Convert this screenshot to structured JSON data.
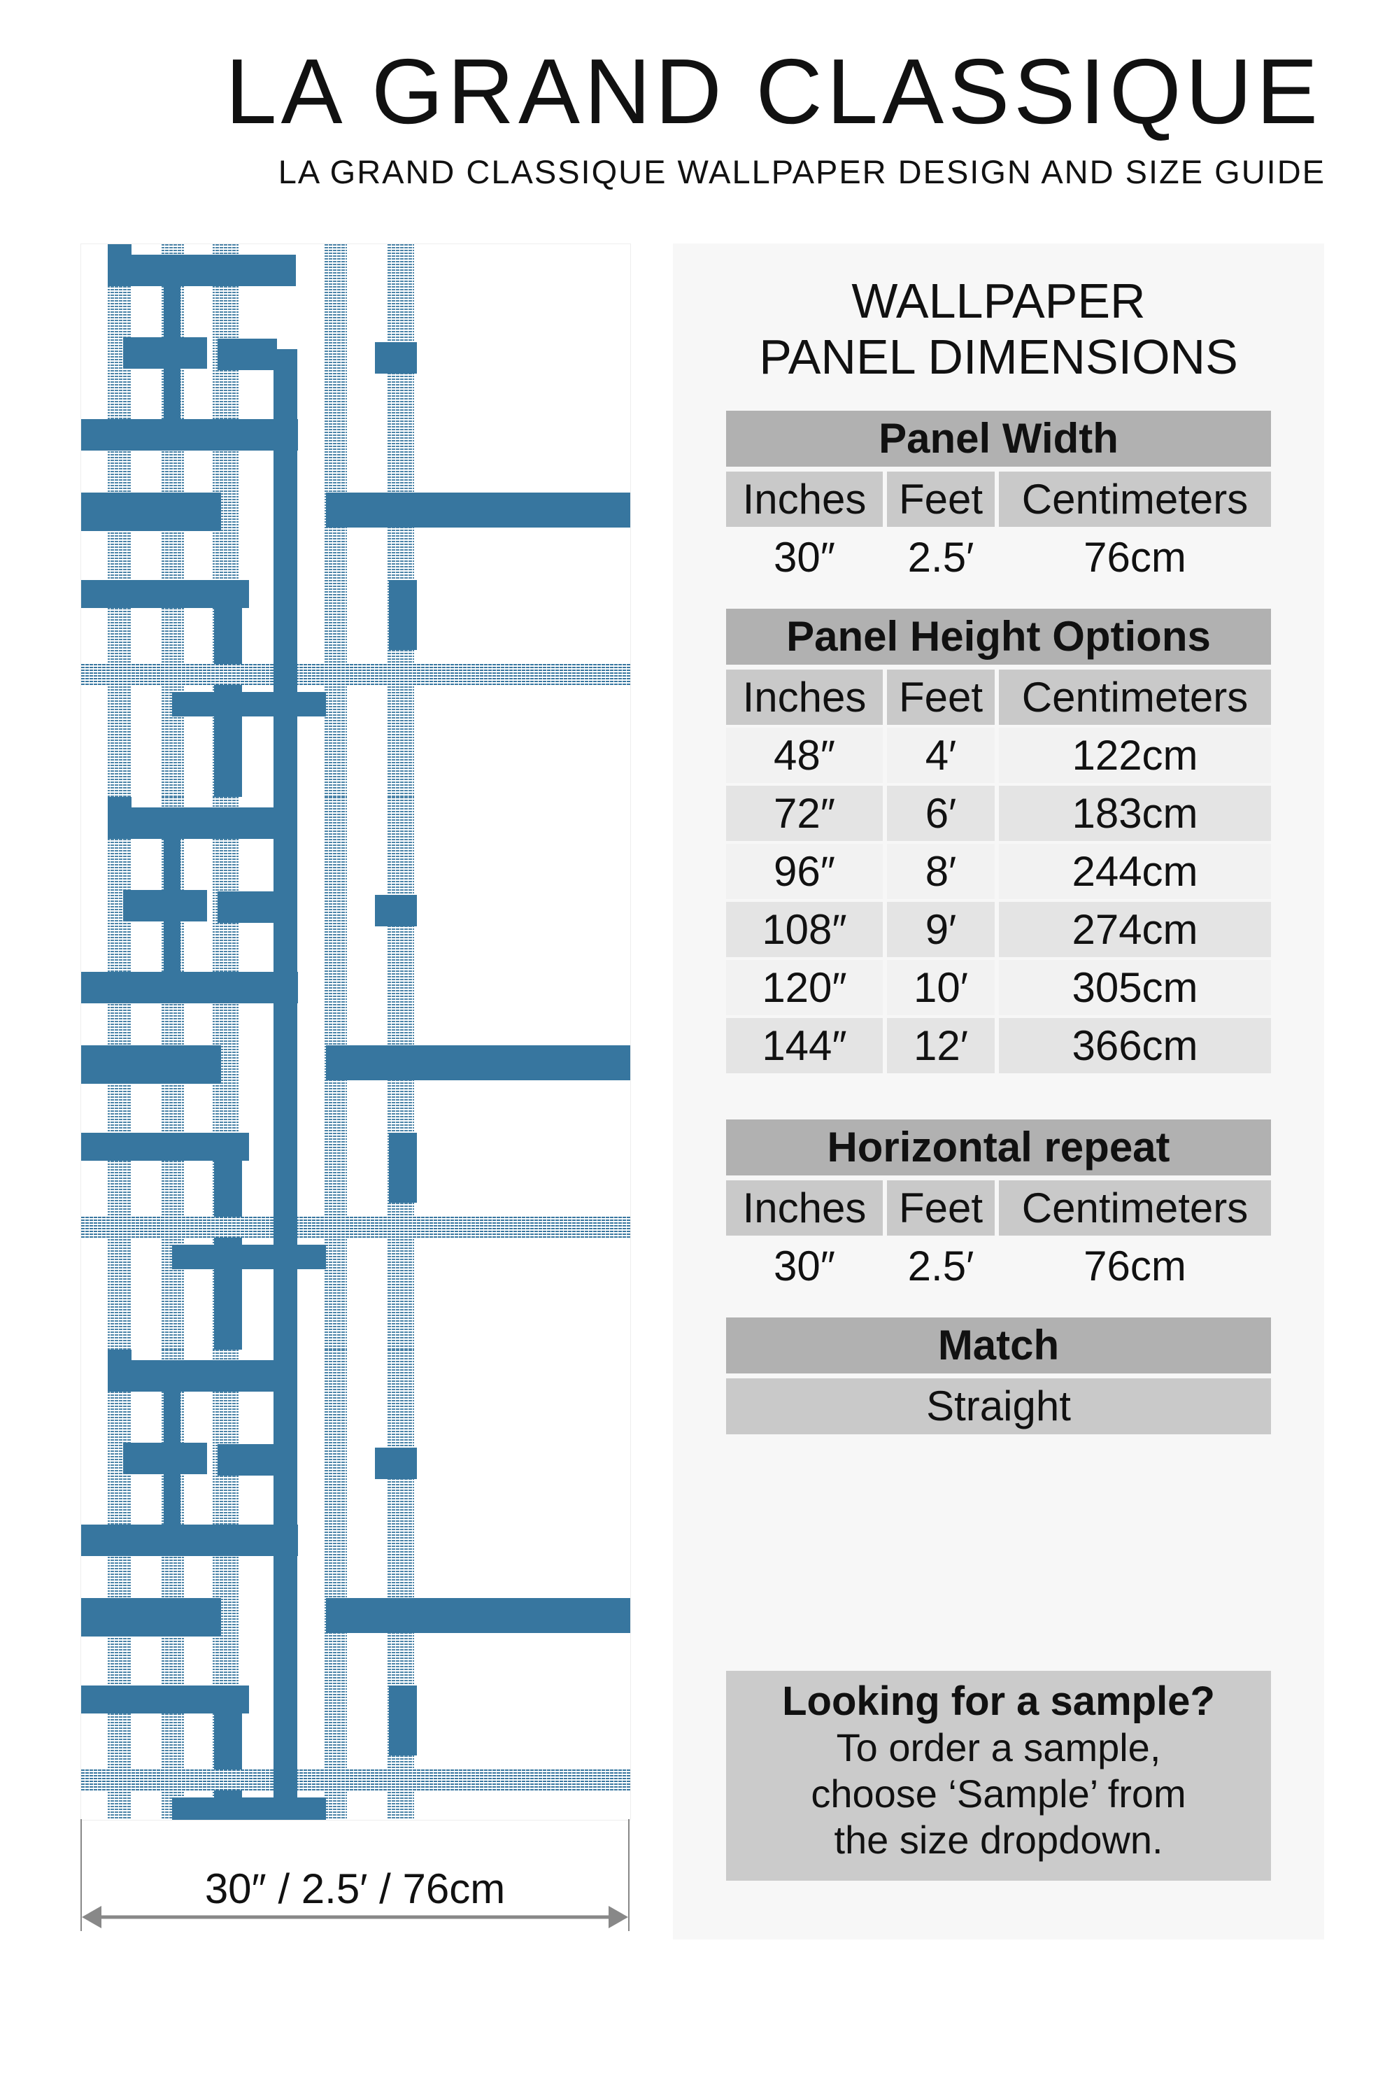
{
  "header": {
    "brand": "LA GRAND CLASSIQUE",
    "subtitle": "LA GRAND CLASSIQUE WALLPAPER DESIGN AND SIZE GUIDE"
  },
  "preview": {
    "pattern_color": "#37769f",
    "dimension_label": "30″ / 2.5′ / 76cm"
  },
  "specs": {
    "title_line1": "WALLPAPER",
    "title_line2": "PANEL DIMENSIONS",
    "columns": [
      "Inches",
      "Feet",
      "Centimeters"
    ],
    "panel_width": {
      "title": "Panel Width",
      "values": [
        "30″",
        "2.5′",
        "76cm"
      ]
    },
    "panel_height": {
      "title": "Panel Height Options",
      "rows": [
        [
          "48″",
          "4′",
          "122cm"
        ],
        [
          "72″",
          "6′",
          "183cm"
        ],
        [
          "96″",
          "8′",
          "244cm"
        ],
        [
          "108″",
          "9′",
          "274cm"
        ],
        [
          "120″",
          "10′",
          "305cm"
        ],
        [
          "144″",
          "12′",
          "366cm"
        ]
      ]
    },
    "horizontal_repeat": {
      "title": "Horizontal repeat",
      "values": [
        "30″",
        "2.5′",
        "76cm"
      ]
    },
    "match": {
      "title": "Match",
      "value": "Straight"
    },
    "sample": {
      "title": "Looking for a sample?",
      "line1": "To order a sample,",
      "line2": "choose ‘Sample’ from",
      "line3": "the size dropdown."
    }
  }
}
